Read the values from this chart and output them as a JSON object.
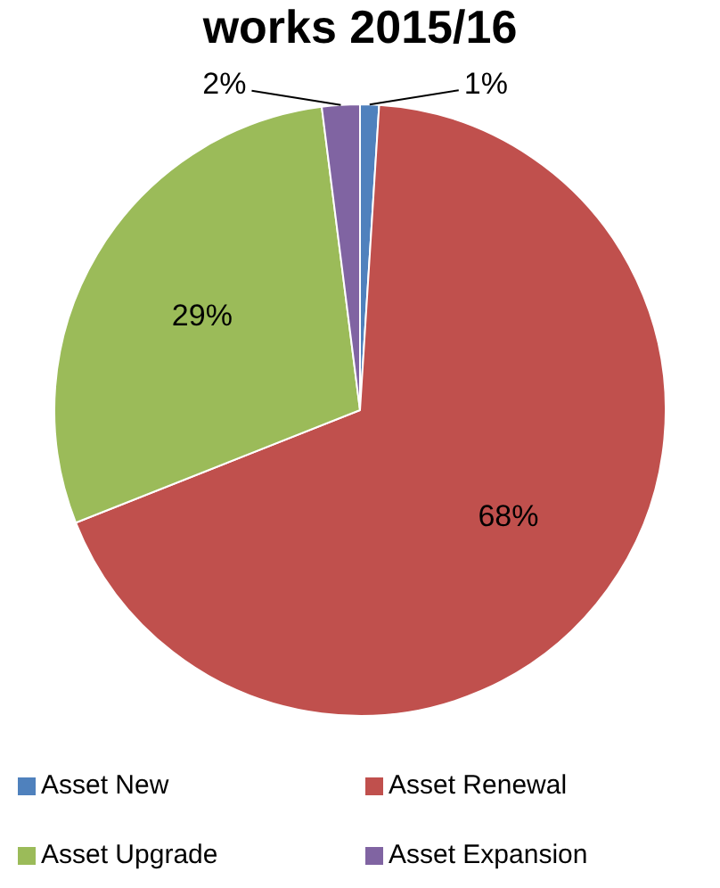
{
  "chart_data": {
    "type": "pie",
    "title": "works 2015/16",
    "categories": [
      "Asset New",
      "Asset Renewal",
      "Asset Upgrade",
      "Asset Expansion"
    ],
    "values": [
      1,
      68,
      29,
      2
    ],
    "colors": [
      "#4f81bd",
      "#c0504d",
      "#9bbb59",
      "#8064a2"
    ],
    "value_labels": [
      "1%",
      "68%",
      "29%",
      "2%"
    ],
    "legend": "bottom"
  }
}
